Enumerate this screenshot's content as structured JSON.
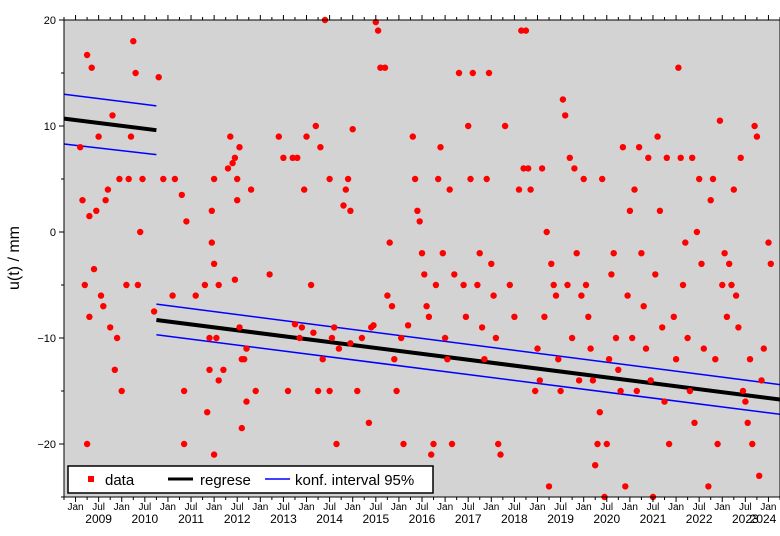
{
  "chart_data": {
    "type": "scatter",
    "ylabel": "u(t)  / mm",
    "xlim": [
      2008.75,
      2024.25
    ],
    "ylim": [
      -25,
      20
    ],
    "y_ticks": [
      -20,
      -10,
      0,
      10,
      20
    ],
    "x_year_labels": [
      "2009",
      "2010",
      "2011",
      "2012",
      "2013",
      "2014",
      "2015",
      "2016",
      "2017",
      "2018",
      "2019",
      "2020",
      "2021",
      "2022",
      "2023",
      "2024"
    ],
    "x_month_labels": [
      "Jan",
      "Jul"
    ],
    "background": "#d3d3d3",
    "grid": false,
    "legend_position": "bottom-left",
    "legend": [
      {
        "label": "data",
        "kind": "marker",
        "color": "#ff0000"
      },
      {
        "label": "regrese",
        "kind": "line",
        "color": "#000000"
      },
      {
        "label": "konf. interval 95%",
        "kind": "line",
        "color": "#0000ff"
      }
    ],
    "regression": [
      {
        "x": [
          2008.75,
          2010.75
        ],
        "y": [
          10.7,
          9.6
        ]
      },
      {
        "x": [
          2010.75,
          2024.25
        ],
        "y": [
          -8.3,
          -15.8
        ]
      }
    ],
    "confidence_upper": [
      {
        "x": [
          2008.75,
          2010.75
        ],
        "y": [
          13.0,
          11.9
        ]
      },
      {
        "x": [
          2010.75,
          2024.25
        ],
        "y": [
          -6.8,
          -14.4
        ]
      }
    ],
    "confidence_lower": [
      {
        "x": [
          2008.75,
          2010.75
        ],
        "y": [
          8.3,
          7.3
        ]
      },
      {
        "x": [
          2010.75,
          2024.25
        ],
        "y": [
          -9.7,
          -17.2
        ]
      }
    ],
    "points": [
      [
        2009.1,
        8
      ],
      [
        2009.15,
        3
      ],
      [
        2009.2,
        -5
      ],
      [
        2009.25,
        16.7
      ],
      [
        2009.3,
        1.5
      ],
      [
        2009.3,
        -8
      ],
      [
        2009.35,
        15.5
      ],
      [
        2009.4,
        -3.5
      ],
      [
        2009.45,
        2
      ],
      [
        2009.5,
        9
      ],
      [
        2009.55,
        -6
      ],
      [
        2009.6,
        -7
      ],
      [
        2009.65,
        3
      ],
      [
        2009.7,
        4
      ],
      [
        2009.75,
        -9
      ],
      [
        2009.8,
        11
      ],
      [
        2009.85,
        -13
      ],
      [
        2009.9,
        -10
      ],
      [
        2009.95,
        5
      ],
      [
        2010.0,
        -15
      ],
      [
        2010.1,
        -5
      ],
      [
        2010.15,
        5
      ],
      [
        2010.2,
        9
      ],
      [
        2010.25,
        18
      ],
      [
        2010.3,
        15
      ],
      [
        2010.35,
        -5
      ],
      [
        2010.4,
        0
      ],
      [
        2010.45,
        5
      ],
      [
        2009.25,
        -20
      ],
      [
        2010.7,
        -7.5
      ],
      [
        2010.8,
        14.6
      ],
      [
        2010.9,
        5
      ],
      [
        2011.1,
        -6
      ],
      [
        2011.15,
        5
      ],
      [
        2011.3,
        3.5
      ],
      [
        2011.35,
        -20
      ],
      [
        2011.35,
        -15
      ],
      [
        2011.4,
        1
      ],
      [
        2011.6,
        -6
      ],
      [
        2011.8,
        -5
      ],
      [
        2011.85,
        -17
      ],
      [
        2011.9,
        -13
      ],
      [
        2011.9,
        -10
      ],
      [
        2011.95,
        2
      ],
      [
        2011.95,
        -1
      ],
      [
        2012.0,
        -3
      ],
      [
        2012.0,
        -21
      ],
      [
        2012.0,
        5
      ],
      [
        2012.1,
        -14
      ],
      [
        2012.05,
        -10
      ],
      [
        2012.1,
        -5
      ],
      [
        2012.2,
        -13
      ],
      [
        2012.3,
        6
      ],
      [
        2012.35,
        9
      ],
      [
        2012.4,
        6.5
      ],
      [
        2012.45,
        -4.5
      ],
      [
        2012.5,
        3
      ],
      [
        2012.5,
        5
      ],
      [
        2012.55,
        -9
      ],
      [
        2012.6,
        -12
      ],
      [
        2012.6,
        -18.5
      ],
      [
        2012.65,
        -12
      ],
      [
        2012.7,
        -16
      ],
      [
        2012.7,
        -11
      ],
      [
        2012.8,
        4
      ],
      [
        2012.9,
        -15
      ],
      [
        2012.45,
        7
      ],
      [
        2012.55,
        8
      ],
      [
        2013.2,
        -4
      ],
      [
        2013.4,
        9
      ],
      [
        2013.5,
        7
      ],
      [
        2013.6,
        -15
      ],
      [
        2013.7,
        7
      ],
      [
        2013.75,
        -8.7
      ],
      [
        2013.8,
        7
      ],
      [
        2013.85,
        -10
      ],
      [
        2013.9,
        -9
      ],
      [
        2013.95,
        4
      ],
      [
        2014.0,
        9
      ],
      [
        2014.1,
        -5
      ],
      [
        2014.15,
        -9.5
      ],
      [
        2014.2,
        10
      ],
      [
        2014.25,
        -15
      ],
      [
        2014.3,
        8
      ],
      [
        2014.35,
        -12
      ],
      [
        2014.4,
        20
      ],
      [
        2014.5,
        5
      ],
      [
        2014.5,
        -15
      ],
      [
        2014.55,
        -10
      ],
      [
        2014.6,
        -9
      ],
      [
        2014.65,
        -20
      ],
      [
        2014.7,
        -11
      ],
      [
        2014.8,
        2.5
      ],
      [
        2014.85,
        4
      ],
      [
        2014.9,
        5
      ],
      [
        2014.95,
        2
      ],
      [
        2014.95,
        -10.5
      ],
      [
        2015.0,
        9.7
      ],
      [
        2015.1,
        -15
      ],
      [
        2015.2,
        -10
      ],
      [
        2015.35,
        -18
      ],
      [
        2015.4,
        -9
      ],
      [
        2015.45,
        -8.8
      ],
      [
        2015.5,
        19.8
      ],
      [
        2015.55,
        19
      ],
      [
        2015.6,
        15.5
      ],
      [
        2015.7,
        15.5
      ],
      [
        2015.75,
        -6
      ],
      [
        2015.8,
        -1
      ],
      [
        2015.85,
        -7
      ],
      [
        2015.9,
        -12
      ],
      [
        2015.95,
        -15
      ],
      [
        2016.05,
        -10
      ],
      [
        2016.1,
        -20
      ],
      [
        2016.2,
        -8.8
      ],
      [
        2016.3,
        9
      ],
      [
        2016.35,
        5
      ],
      [
        2016.4,
        2
      ],
      [
        2016.45,
        1
      ],
      [
        2016.5,
        -2
      ],
      [
        2016.55,
        -4
      ],
      [
        2016.6,
        -7
      ],
      [
        2016.65,
        -8
      ],
      [
        2016.7,
        -21
      ],
      [
        2016.75,
        -20
      ],
      [
        2016.8,
        -5
      ],
      [
        2016.85,
        5
      ],
      [
        2016.9,
        8
      ],
      [
        2016.95,
        -2
      ],
      [
        2017.0,
        -10
      ],
      [
        2017.05,
        -12
      ],
      [
        2017.1,
        4
      ],
      [
        2017.15,
        -20
      ],
      [
        2017.2,
        -4
      ],
      [
        2017.3,
        15
      ],
      [
        2017.4,
        -5
      ],
      [
        2017.45,
        -8
      ],
      [
        2017.5,
        10
      ],
      [
        2017.55,
        5
      ],
      [
        2017.6,
        15
      ],
      [
        2017.7,
        -5
      ],
      [
        2017.75,
        -2
      ],
      [
        2017.8,
        -9
      ],
      [
        2017.85,
        -12
      ],
      [
        2017.9,
        5
      ],
      [
        2017.95,
        15
      ],
      [
        2018.0,
        -3
      ],
      [
        2018.05,
        -6
      ],
      [
        2018.1,
        -10
      ],
      [
        2018.15,
        -20
      ],
      [
        2018.2,
        -21
      ],
      [
        2018.3,
        10
      ],
      [
        2018.4,
        -5
      ],
      [
        2018.5,
        -8
      ],
      [
        2018.6,
        4
      ],
      [
        2018.65,
        19
      ],
      [
        2018.7,
        6
      ],
      [
        2018.75,
        19
      ],
      [
        2018.8,
        6
      ],
      [
        2018.85,
        4
      ],
      [
        2018.95,
        -15
      ],
      [
        2019.0,
        -11
      ],
      [
        2019.05,
        -14
      ],
      [
        2019.1,
        6
      ],
      [
        2019.15,
        -8
      ],
      [
        2019.2,
        0
      ],
      [
        2019.25,
        -24
      ],
      [
        2019.3,
        -3
      ],
      [
        2019.35,
        -5
      ],
      [
        2019.4,
        -6
      ],
      [
        2019.45,
        -12
      ],
      [
        2019.5,
        -15
      ],
      [
        2019.55,
        12.5
      ],
      [
        2019.6,
        11
      ],
      [
        2019.65,
        -5
      ],
      [
        2019.7,
        7
      ],
      [
        2019.75,
        -10
      ],
      [
        2019.8,
        6
      ],
      [
        2019.85,
        -2
      ],
      [
        2019.9,
        -14
      ],
      [
        2019.95,
        -6
      ],
      [
        2020.0,
        5
      ],
      [
        2020.05,
        -5
      ],
      [
        2020.1,
        -8
      ],
      [
        2020.15,
        -11
      ],
      [
        2020.2,
        -14
      ],
      [
        2020.25,
        -22
      ],
      [
        2020.3,
        -20
      ],
      [
        2020.35,
        -17
      ],
      [
        2020.4,
        5
      ],
      [
        2020.45,
        -25
      ],
      [
        2020.5,
        -20
      ],
      [
        2020.55,
        -12
      ],
      [
        2020.6,
        -4
      ],
      [
        2020.65,
        -2
      ],
      [
        2020.7,
        -10
      ],
      [
        2020.75,
        -13
      ],
      [
        2020.8,
        -15
      ],
      [
        2020.85,
        8
      ],
      [
        2020.9,
        -24
      ],
      [
        2020.95,
        -6
      ],
      [
        2021.0,
        2
      ],
      [
        2021.05,
        -10
      ],
      [
        2021.1,
        4
      ],
      [
        2021.15,
        -15
      ],
      [
        2021.2,
        8
      ],
      [
        2021.25,
        -2
      ],
      [
        2021.3,
        -7
      ],
      [
        2021.35,
        -11
      ],
      [
        2021.4,
        7
      ],
      [
        2021.45,
        -14
      ],
      [
        2021.5,
        -25
      ],
      [
        2021.55,
        -4
      ],
      [
        2021.6,
        9
      ],
      [
        2021.65,
        2
      ],
      [
        2021.7,
        -9
      ],
      [
        2021.75,
        -16
      ],
      [
        2021.8,
        7
      ],
      [
        2021.85,
        -20
      ],
      [
        2021.95,
        -8
      ],
      [
        2022.0,
        -12
      ],
      [
        2022.05,
        15.5
      ],
      [
        2022.1,
        7
      ],
      [
        2022.15,
        -5
      ],
      [
        2022.2,
        -1
      ],
      [
        2022.25,
        -10
      ],
      [
        2022.3,
        -15
      ],
      [
        2022.35,
        7
      ],
      [
        2022.4,
        -18
      ],
      [
        2022.45,
        0
      ],
      [
        2022.5,
        5
      ],
      [
        2022.55,
        -3
      ],
      [
        2022.6,
        -11
      ],
      [
        2022.7,
        -24
      ],
      [
        2022.75,
        3
      ],
      [
        2022.8,
        5
      ],
      [
        2022.85,
        -12
      ],
      [
        2022.9,
        -20
      ],
      [
        2022.95,
        10.5
      ],
      [
        2023.0,
        -5
      ],
      [
        2023.05,
        -2
      ],
      [
        2023.1,
        -8
      ],
      [
        2023.15,
        -3
      ],
      [
        2023.2,
        -5
      ],
      [
        2023.25,
        4
      ],
      [
        2023.3,
        -6
      ],
      [
        2023.35,
        -9
      ],
      [
        2023.4,
        7
      ],
      [
        2023.45,
        -15
      ],
      [
        2023.5,
        -16
      ],
      [
        2023.55,
        -18
      ],
      [
        2023.6,
        -12
      ],
      [
        2023.65,
        -20
      ],
      [
        2023.7,
        10
      ],
      [
        2023.75,
        9
      ],
      [
        2023.8,
        -23
      ],
      [
        2023.85,
        -14
      ],
      [
        2023.9,
        -11
      ],
      [
        2024.0,
        -1
      ],
      [
        2024.05,
        -3
      ]
    ]
  }
}
